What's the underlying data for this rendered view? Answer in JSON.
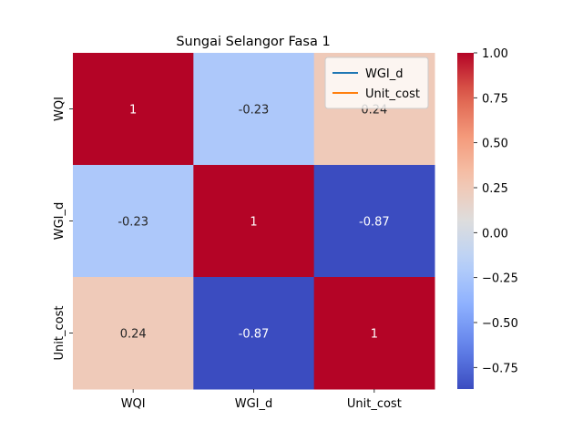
{
  "chart_data": {
    "type": "heatmap",
    "title": "Sungai Selangor Fasa 1",
    "xlabel": "",
    "ylabel": "",
    "x_labels": [
      "WQI",
      "WGI_d",
      "Unit_cost"
    ],
    "y_labels": [
      "WQI",
      "WGI_d",
      "Unit_cost"
    ],
    "values": [
      [
        1,
        -0.23,
        0.24
      ],
      [
        -0.23,
        1,
        -0.87
      ],
      [
        0.24,
        -0.87,
        1
      ]
    ],
    "cell_labels": [
      [
        "1",
        "-0.23",
        "0.24"
      ],
      [
        "-0.23",
        "1",
        "-0.87"
      ],
      [
        "0.24",
        "-0.87",
        "1"
      ]
    ],
    "colormap": "coolwarm",
    "color_range": [
      -0.87,
      1.0
    ],
    "colorbar_ticks": [
      1.0,
      0.75,
      0.5,
      0.25,
      0.0,
      -0.25,
      -0.5,
      -0.75
    ],
    "colorbar_tick_labels": [
      "1.00",
      "0.75",
      "0.50",
      "0.25",
      "0.00",
      "−0.25",
      "−0.50",
      "−0.75"
    ],
    "legend": {
      "placement": "top-right",
      "entries": [
        {
          "label": "WGI_d",
          "color": "#1f77b4"
        },
        {
          "label": "Unit_cost",
          "color": "#ff7f0e"
        }
      ]
    }
  }
}
